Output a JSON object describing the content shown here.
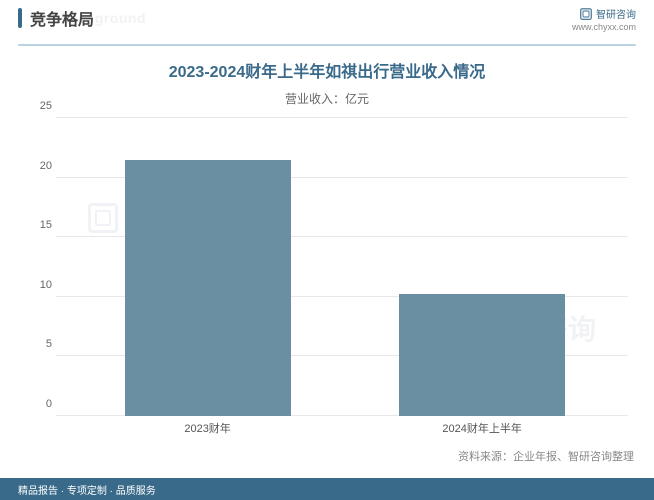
{
  "header": {
    "title": "竞争格局",
    "subtitle_bg": "ent background",
    "marker_color": "#3a6a8a",
    "divider_color": "#b9d3e2"
  },
  "brand": {
    "name": "智研咨询",
    "url": "www.chyxx.com",
    "icon_color": "#3a6a8a"
  },
  "chart": {
    "type": "bar",
    "title": "2023-2024财年上半年如祺出行营业收入情况",
    "title_color": "#3a6a8a",
    "subtitle": "营业收入：亿元",
    "categories": [
      "2023财年",
      "2024财年上半年"
    ],
    "values": [
      21.5,
      10.2
    ],
    "bar_color": "#6a8fa3",
    "ylim": [
      0,
      25
    ],
    "ytick_step": 5,
    "yticks": [
      0,
      5,
      10,
      15,
      20,
      25
    ],
    "grid_color": "#e8e8e8",
    "bar_width_pct": 29,
    "bar_positions_pct": [
      12,
      60
    ],
    "background_color": "#ffffff",
    "label_fontsize": 11,
    "title_fontsize": 16
  },
  "source": {
    "text": "资料来源：企业年报、智研咨询整理"
  },
  "watermark": {
    "text": "智研咨询"
  },
  "footer": {
    "text": "精品报告 · 专项定制 · 品质服务",
    "bg_color": "#3a6a8a"
  }
}
